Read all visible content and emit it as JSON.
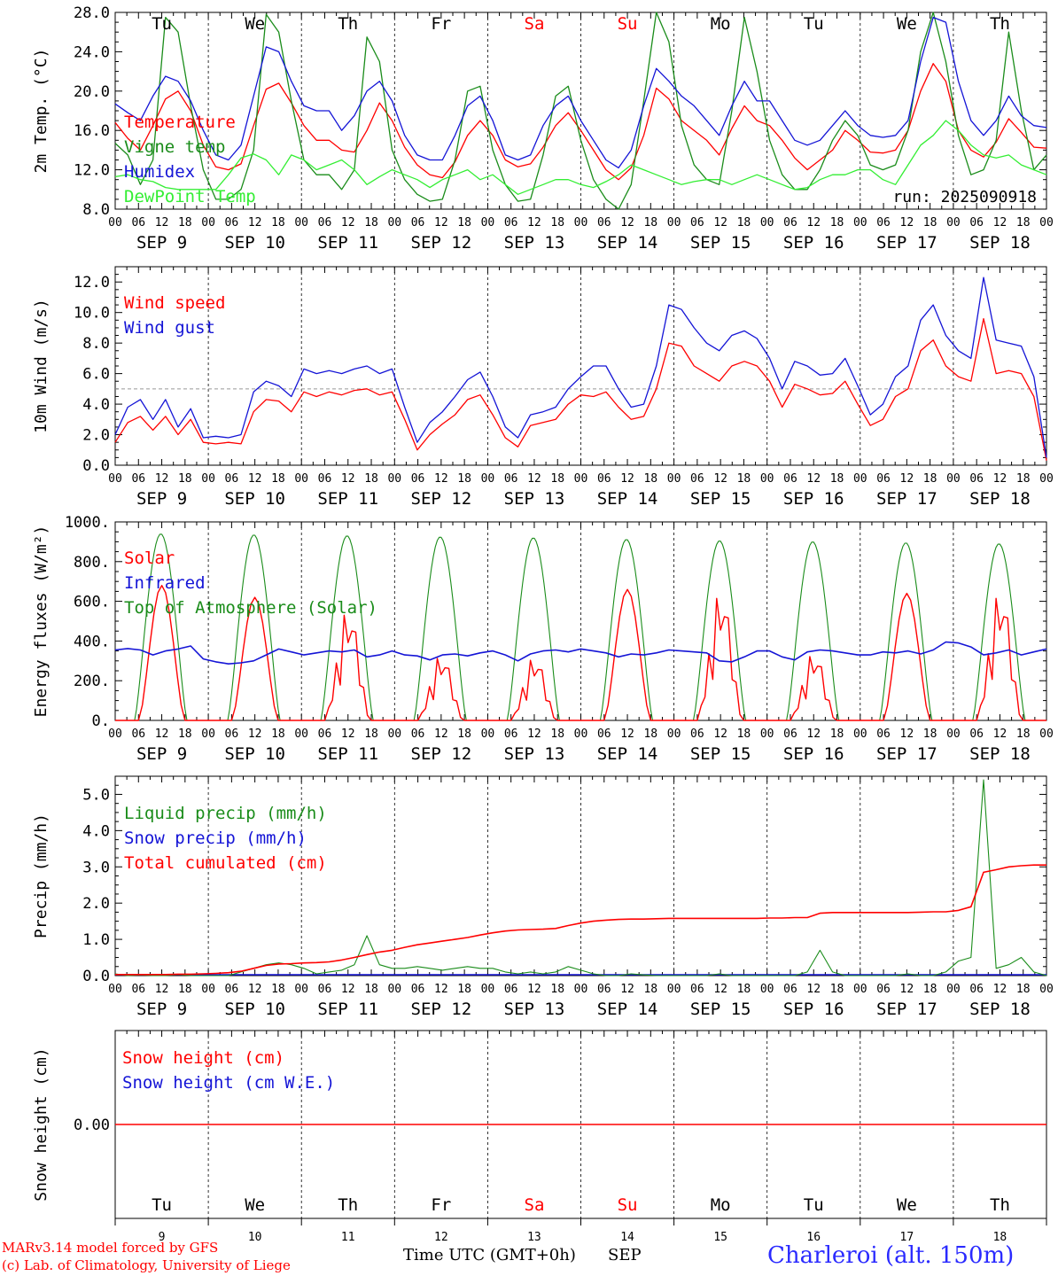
{
  "run_label": "run: 2025090918",
  "location": "Charleroi (alt. 150m)",
  "credits": [
    "MARv3.14 model forced by GFS",
    "(c) Lab. of Climatology, University of Liege"
  ],
  "xaxis_title": "Time UTC (GMT+0h)",
  "month_label": "SEP",
  "days": [
    {
      "abbr": "Tu",
      "date": "SEP  9",
      "num": "9",
      "weekend": false
    },
    {
      "abbr": "We",
      "date": "SEP 10",
      "num": "10",
      "weekend": false
    },
    {
      "abbr": "Th",
      "date": "SEP 11",
      "num": "11",
      "weekend": false
    },
    {
      "abbr": "Fr",
      "date": "SEP 12",
      "num": "12",
      "weekend": false
    },
    {
      "abbr": "Sa",
      "date": "SEP 13",
      "num": "13",
      "weekend": true
    },
    {
      "abbr": "Su",
      "date": "SEP 14",
      "num": "14",
      "weekend": true
    },
    {
      "abbr": "Mo",
      "date": "SEP 15",
      "num": "15",
      "weekend": false
    },
    {
      "abbr": "Tu",
      "date": "SEP 16",
      "num": "16",
      "weekend": false
    },
    {
      "abbr": "We",
      "date": "SEP 17",
      "num": "17",
      "weekend": false
    },
    {
      "abbr": "Th",
      "date": "SEP 18",
      "num": "18",
      "weekend": false
    }
  ],
  "hour_ticks": [
    "00",
    "06",
    "12",
    "18"
  ],
  "colors": {
    "red": "#ff0000",
    "green": "#1a8c1a",
    "blue": "#1414d6",
    "lightgreen": "#33ee33",
    "weekend": "#ff0000",
    "grid": "#000000"
  },
  "chart_data": [
    {
      "type": "line",
      "ylabel": "2m Temp. (°C)",
      "ylim": [
        8,
        28
      ],
      "yticks": [
        "8.0",
        "12.0",
        "16.0",
        "20.0",
        "24.0",
        "28.0"
      ],
      "x_unit": "hours since 2025-09-09 00 UTC (3-hourly)",
      "series": [
        {
          "name": "Temperature",
          "color": "red",
          "values": [
            16.8,
            15.2,
            14.0,
            16.5,
            19.2,
            20.0,
            18.0,
            14.5,
            12.3,
            12.0,
            12.6,
            16.5,
            20.2,
            20.8,
            18.8,
            16.5,
            15.0,
            15.0,
            14.0,
            13.8,
            16.0,
            18.8,
            17.0,
            14.3,
            12.5,
            11.5,
            11.2,
            12.8,
            15.5,
            17.0,
            15.5,
            13.0,
            12.3,
            12.6,
            14.3,
            16.5,
            17.8,
            16.0,
            14.0,
            12.0,
            11.0,
            12.2,
            15.5,
            20.3,
            19.2,
            17.0,
            16.0,
            15.0,
            13.5,
            16.2,
            18.5,
            17.0,
            16.5,
            15.0,
            13.2,
            12.0,
            13.0,
            14.0,
            16.0,
            15.0,
            13.8,
            13.7,
            14.0,
            16.0,
            20.0,
            22.8,
            21.0,
            16.0,
            14.0,
            13.3,
            14.8,
            17.2,
            15.8,
            14.3,
            14.2
          ]
        },
        {
          "name": "Vigne temp",
          "color": "green",
          "values": [
            14.7,
            13.5,
            10.5,
            13.0,
            27.5,
            26.0,
            18.5,
            12.0,
            9.0,
            9.0,
            10.0,
            14.0,
            27.8,
            26.0,
            19.0,
            13.0,
            11.5,
            11.5,
            10.0,
            12.0,
            25.5,
            23.0,
            14.0,
            11.0,
            9.5,
            8.8,
            9.0,
            13.0,
            20.0,
            20.5,
            14.0,
            10.5,
            8.8,
            9.0,
            13.5,
            19.5,
            20.5,
            15.0,
            11.0,
            9.0,
            8.0,
            10.5,
            19.0,
            28.0,
            25.0,
            16.5,
            12.5,
            11.0,
            10.5,
            18.0,
            27.5,
            22.0,
            15.0,
            11.5,
            10.0,
            10.0,
            12.0,
            15.0,
            17.0,
            15.5,
            12.5,
            12.0,
            12.5,
            16.0,
            24.0,
            28.0,
            23.0,
            15.5,
            11.5,
            12.0,
            15.0,
            26.0,
            18.0,
            12.0,
            13.5
          ]
        },
        {
          "name": "Humidex",
          "color": "blue",
          "values": [
            18.7,
            17.8,
            17.0,
            19.5,
            21.5,
            21.0,
            19.0,
            16.0,
            13.5,
            13.0,
            14.5,
            19.5,
            24.5,
            24.0,
            21.0,
            18.5,
            18.0,
            18.0,
            16.0,
            17.5,
            20.0,
            21.0,
            19.0,
            15.5,
            13.5,
            13.0,
            13.0,
            15.5,
            18.5,
            19.5,
            17.0,
            13.5,
            13.0,
            13.5,
            16.5,
            18.5,
            19.5,
            17.0,
            15.0,
            13.0,
            12.2,
            14.0,
            18.5,
            22.3,
            21.0,
            19.5,
            18.5,
            17.0,
            15.5,
            18.5,
            21.0,
            19.0,
            19.0,
            17.0,
            15.0,
            14.5,
            15.0,
            16.5,
            18.0,
            16.5,
            15.5,
            15.3,
            15.5,
            17.0,
            23.0,
            27.5,
            27.0,
            21.0,
            17.0,
            15.5,
            17.0,
            19.5,
            17.5,
            16.5,
            16.3
          ]
        },
        {
          "name": "DewPoint Temp",
          "color": "lightgreen",
          "values": [
            11.3,
            11.5,
            11.0,
            10.8,
            10.2,
            10.0,
            10.0,
            10.0,
            10.0,
            11.5,
            13.2,
            13.6,
            13.0,
            11.5,
            13.5,
            13.0,
            12.0,
            12.5,
            13.0,
            12.0,
            10.5,
            11.3,
            12.0,
            11.5,
            11.0,
            10.2,
            11.0,
            11.5,
            12.0,
            11.0,
            11.5,
            10.5,
            9.5,
            10.0,
            10.5,
            11.0,
            11.0,
            10.5,
            10.2,
            10.8,
            11.5,
            12.5,
            12.0,
            11.5,
            11.0,
            10.5,
            10.8,
            11.0,
            11.0,
            10.5,
            11.0,
            11.5,
            11.0,
            10.5,
            10.0,
            10.2,
            11.0,
            11.5,
            11.5,
            12.0,
            12.0,
            11.0,
            10.5,
            12.5,
            14.5,
            15.5,
            17.0,
            16.0,
            14.5,
            13.5,
            13.2,
            13.5,
            12.5,
            12.0,
            11.5
          ]
        }
      ]
    },
    {
      "type": "line",
      "ylabel": "10m Wind (m/s)",
      "ylim": [
        0,
        13
      ],
      "yticks": [
        "0.0",
        "2.0",
        "4.0",
        "6.0",
        "8.0",
        "10.0",
        "12.0"
      ],
      "reference_line": 5.0,
      "series": [
        {
          "name": "Wind speed",
          "color": "red",
          "values": [
            1.5,
            2.8,
            3.2,
            2.3,
            3.2,
            2.0,
            3.0,
            1.5,
            1.4,
            1.5,
            1.4,
            3.5,
            4.3,
            4.2,
            3.5,
            4.8,
            4.5,
            4.8,
            4.6,
            4.9,
            5.0,
            4.6,
            4.8,
            3.0,
            1.0,
            2.0,
            2.7,
            3.3,
            4.3,
            4.6,
            3.3,
            1.8,
            1.2,
            2.6,
            2.8,
            3.0,
            4.0,
            4.6,
            4.5,
            4.8,
            3.8,
            3.0,
            3.2,
            5.0,
            8.0,
            7.8,
            6.5,
            6.0,
            5.5,
            6.5,
            6.8,
            6.5,
            5.5,
            3.8,
            5.3,
            5.0,
            4.6,
            4.7,
            5.5,
            4.0,
            2.6,
            3.0,
            4.5,
            5.0,
            7.5,
            8.2,
            6.5,
            5.8,
            5.5,
            9.6,
            6.0,
            6.2,
            6.0,
            4.5,
            0.3
          ]
        },
        {
          "name": "Wind gust",
          "color": "blue",
          "values": [
            2.0,
            3.8,
            4.3,
            3.0,
            4.3,
            2.5,
            3.7,
            1.8,
            1.9,
            1.8,
            2.0,
            4.8,
            5.5,
            5.2,
            4.5,
            6.3,
            6.0,
            6.2,
            6.0,
            6.3,
            6.5,
            6.0,
            6.3,
            3.8,
            1.5,
            2.8,
            3.5,
            4.5,
            5.6,
            6.1,
            4.5,
            2.5,
            1.8,
            3.3,
            3.5,
            3.8,
            5.0,
            5.8,
            6.5,
            6.5,
            5.0,
            3.8,
            4.0,
            6.5,
            10.5,
            10.2,
            9.0,
            8.0,
            7.5,
            8.5,
            8.8,
            8.3,
            7.0,
            5.0,
            6.8,
            6.5,
            5.9,
            6.0,
            7.0,
            5.2,
            3.3,
            4.0,
            5.8,
            6.5,
            9.5,
            10.5,
            8.5,
            7.5,
            7.0,
            12.3,
            8.2,
            8.0,
            7.8,
            5.8,
            0.5
          ]
        }
      ]
    },
    {
      "type": "line",
      "ylabel": "Energy fluxes (W/m²)",
      "ylim": [
        0,
        1000
      ],
      "yticks": [
        "0.",
        "200.",
        "400.",
        "600.",
        "800.",
        "1000."
      ],
      "series": [
        {
          "name": "Solar",
          "color": "red",
          "peaks": [
            680,
            620,
            560,
            330,
            320,
            660,
            650,
            340,
            640,
            650
          ]
        },
        {
          "name": "Infrared",
          "color": "blue",
          "values": [
            355,
            362,
            355,
            330,
            350,
            360,
            375,
            310,
            295,
            285,
            290,
            300,
            330,
            360,
            345,
            330,
            340,
            350,
            345,
            355,
            320,
            330,
            350,
            330,
            325,
            305,
            330,
            335,
            325,
            340,
            350,
            330,
            300,
            335,
            350,
            355,
            345,
            360,
            350,
            340,
            320,
            335,
            330,
            340,
            355,
            350,
            345,
            340,
            300,
            295,
            320,
            350,
            350,
            320,
            305,
            345,
            355,
            350,
            340,
            330,
            330,
            345,
            340,
            350,
            335,
            355,
            395,
            390,
            370,
            330,
            340,
            355,
            330,
            345,
            360
          ]
        },
        {
          "name": "Top of Atmosphere (Solar)",
          "color": "green",
          "peaks": [
            940,
            935,
            930,
            925,
            920,
            912,
            905,
            900,
            895,
            890
          ]
        }
      ]
    },
    {
      "type": "line",
      "ylabel": "Precip (mm/h)",
      "ylim": [
        0,
        5.5
      ],
      "yticks": [
        "0.0",
        "1.0",
        "2.0",
        "3.0",
        "4.0",
        "5.0"
      ],
      "series": [
        {
          "name": "Liquid precip (mm/h)",
          "color": "green",
          "values": [
            0.05,
            0.0,
            0.02,
            0.0,
            0.0,
            0.03,
            0.0,
            0.0,
            0.0,
            0.0,
            0.1,
            0.2,
            0.3,
            0.35,
            0.3,
            0.2,
            0.05,
            0.1,
            0.15,
            0.3,
            1.1,
            0.3,
            0.2,
            0.2,
            0.25,
            0.2,
            0.15,
            0.2,
            0.25,
            0.2,
            0.2,
            0.1,
            0.05,
            0.1,
            0.05,
            0.1,
            0.25,
            0.15,
            0.05,
            0.0,
            0.0,
            0.05,
            0.02,
            0.0,
            0.0,
            0.0,
            0.0,
            0.0,
            0.05,
            0.0,
            0.0,
            0.0,
            0.0,
            0.0,
            0.0,
            0.1,
            0.7,
            0.1,
            0.0,
            0.0,
            0.0,
            0.0,
            0.0,
            0.05,
            0.0,
            0.0,
            0.1,
            0.4,
            0.5,
            5.4,
            0.2,
            0.3,
            0.5,
            0.1,
            0.0
          ]
        },
        {
          "name": "Snow precip (mm/h)",
          "color": "blue",
          "values": []
        },
        {
          "name": "Total cumulated (cm)",
          "color": "red",
          "values": [
            0.03,
            0.03,
            0.03,
            0.03,
            0.03,
            0.04,
            0.04,
            0.05,
            0.06,
            0.08,
            0.12,
            0.2,
            0.28,
            0.32,
            0.33,
            0.35,
            0.36,
            0.38,
            0.43,
            0.5,
            0.58,
            0.65,
            0.7,
            0.78,
            0.85,
            0.9,
            0.95,
            1.0,
            1.05,
            1.12,
            1.18,
            1.23,
            1.26,
            1.27,
            1.28,
            1.3,
            1.38,
            1.45,
            1.5,
            1.53,
            1.55,
            1.56,
            1.56,
            1.57,
            1.58,
            1.58,
            1.58,
            1.58,
            1.58,
            1.58,
            1.58,
            1.58,
            1.59,
            1.59,
            1.6,
            1.6,
            1.72,
            1.74,
            1.74,
            1.74,
            1.74,
            1.74,
            1.74,
            1.74,
            1.75,
            1.76,
            1.76,
            1.8,
            1.9,
            2.85,
            2.92,
            3.0,
            3.03,
            3.05,
            3.05
          ]
        }
      ]
    },
    {
      "type": "line",
      "ylabel": "Snow height (cm)",
      "ylim": [
        -1,
        1
      ],
      "yticks": [
        "0.00"
      ],
      "series": [
        {
          "name": "Snow height (cm)",
          "color": "red",
          "values": [
            0,
            0
          ]
        },
        {
          "name": "Snow height (cm W.E.)",
          "color": "blue",
          "values": []
        }
      ]
    }
  ]
}
